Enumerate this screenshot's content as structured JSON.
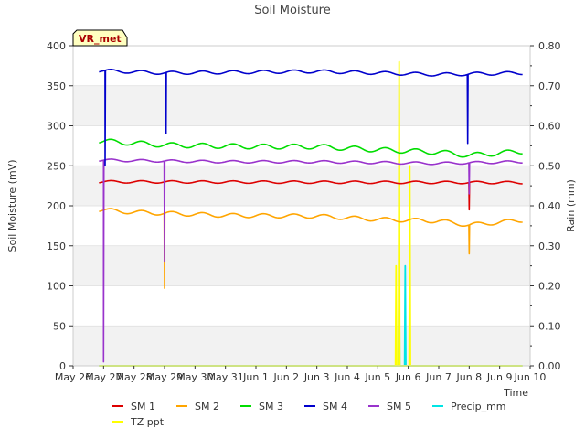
{
  "chart_data": {
    "type": "line",
    "title": "Soil Moisture",
    "xlabel": "Time",
    "ylabel": "Soil Moisture (mV)",
    "y2label": "Rain (mm)",
    "site_label": "VR_met",
    "ylim": [
      0,
      400
    ],
    "y2lim": [
      0,
      0.8
    ],
    "xlim": [
      0,
      15
    ],
    "yticks": [
      0,
      50,
      100,
      150,
      200,
      250,
      300,
      350,
      400
    ],
    "y2ticks": [
      "0.00",
      "0.10",
      "0.20",
      "0.30",
      "0.40",
      "0.50",
      "0.60",
      "0.70",
      "0.80"
    ],
    "xticks": [
      {
        "x": 0,
        "label": "May 26"
      },
      {
        "x": 1,
        "label": "May 27"
      },
      {
        "x": 2,
        "label": "May 28"
      },
      {
        "x": 3,
        "label": "May 29"
      },
      {
        "x": 4,
        "label": "May 30"
      },
      {
        "x": 5,
        "label": "May 31"
      },
      {
        "x": 6,
        "label": "Jun 1"
      },
      {
        "x": 7,
        "label": "Jun 2"
      },
      {
        "x": 8,
        "label": "Jun 3"
      },
      {
        "x": 9,
        "label": "Jun 4"
      },
      {
        "x": 10,
        "label": "Jun 5"
      },
      {
        "x": 11,
        "label": "Jun 6"
      },
      {
        "x": 12,
        "label": "Jun 7"
      },
      {
        "x": 13,
        "label": "Jun 8"
      },
      {
        "x": 14,
        "label": "Jun 9"
      },
      {
        "x": 15,
        "label": "Jun 10"
      }
    ],
    "x_start": 0.85,
    "x_end": 14.75,
    "legend_position": "bottom",
    "series": [
      {
        "name": "SM 1",
        "color": "#dd0000",
        "axis": "left",
        "base": [
          [
            0.85,
            230
          ],
          [
            14.75,
            229
          ]
        ],
        "amp": 1.5,
        "dips": [
          {
            "x": 13.0,
            "min": 195
          }
        ]
      },
      {
        "name": "SM 2",
        "color": "#ffa500",
        "axis": "left",
        "base": [
          [
            0.85,
            195
          ],
          [
            2,
            192
          ],
          [
            5,
            188
          ],
          [
            8,
            187
          ],
          [
            10,
            183
          ],
          [
            12,
            181
          ],
          [
            13,
            176
          ],
          [
            14.75,
            182
          ]
        ],
        "amp": 2.5,
        "dips": [
          {
            "x": 3.0,
            "min": 97
          },
          {
            "x": 13.0,
            "min": 140
          }
        ]
      },
      {
        "name": "SM 3",
        "color": "#00dd00",
        "axis": "left",
        "base": [
          [
            0.85,
            281
          ],
          [
            3,
            276
          ],
          [
            6,
            274
          ],
          [
            8,
            274
          ],
          [
            10,
            270
          ],
          [
            12,
            267
          ],
          [
            13,
            263
          ],
          [
            14.75,
            268
          ]
        ],
        "amp": 3,
        "dips": []
      },
      {
        "name": "SM 4",
        "color": "#0000cc",
        "axis": "left",
        "base": [
          [
            0.85,
            369
          ],
          [
            3,
            366
          ],
          [
            8,
            368
          ],
          [
            10,
            366
          ],
          [
            12,
            364
          ],
          [
            14.75,
            366
          ]
        ],
        "amp": 2,
        "dips": [
          {
            "x": 1.05,
            "min": 250
          },
          {
            "x": 3.05,
            "min": 290
          },
          {
            "x": 12.95,
            "min": 278
          }
        ]
      },
      {
        "name": "SM 5",
        "color": "#9933cc",
        "axis": "left",
        "base": [
          [
            0.85,
            257
          ],
          [
            5,
            255
          ],
          [
            8,
            255
          ],
          [
            10,
            254
          ],
          [
            12,
            253
          ],
          [
            14.75,
            255
          ]
        ],
        "amp": 1.5,
        "dips": [
          {
            "x": 1.0,
            "min": 5
          },
          {
            "x": 3.0,
            "min": 130
          },
          {
            "x": 13.0,
            "min": 215
          }
        ]
      },
      {
        "name": "Precip_mm",
        "color": "#00e5e5",
        "axis": "right",
        "base": [
          [
            0.85,
            0
          ],
          [
            14.75,
            0
          ]
        ],
        "amp": 0,
        "spikes": [
          {
            "x": 10.7,
            "value": 0.25
          },
          {
            "x": 10.9,
            "value": 0.25
          }
        ]
      },
      {
        "name": "TZ ppt",
        "color": "#ffff00",
        "axis": "right",
        "base": [
          [
            0.85,
            0
          ],
          [
            14.75,
            0
          ]
        ],
        "amp": 0,
        "spikes": [
          {
            "x": 10.6,
            "value": 0.25
          },
          {
            "x": 10.7,
            "value": 0.76
          },
          {
            "x": 11.05,
            "value": 0.5
          }
        ]
      }
    ]
  }
}
